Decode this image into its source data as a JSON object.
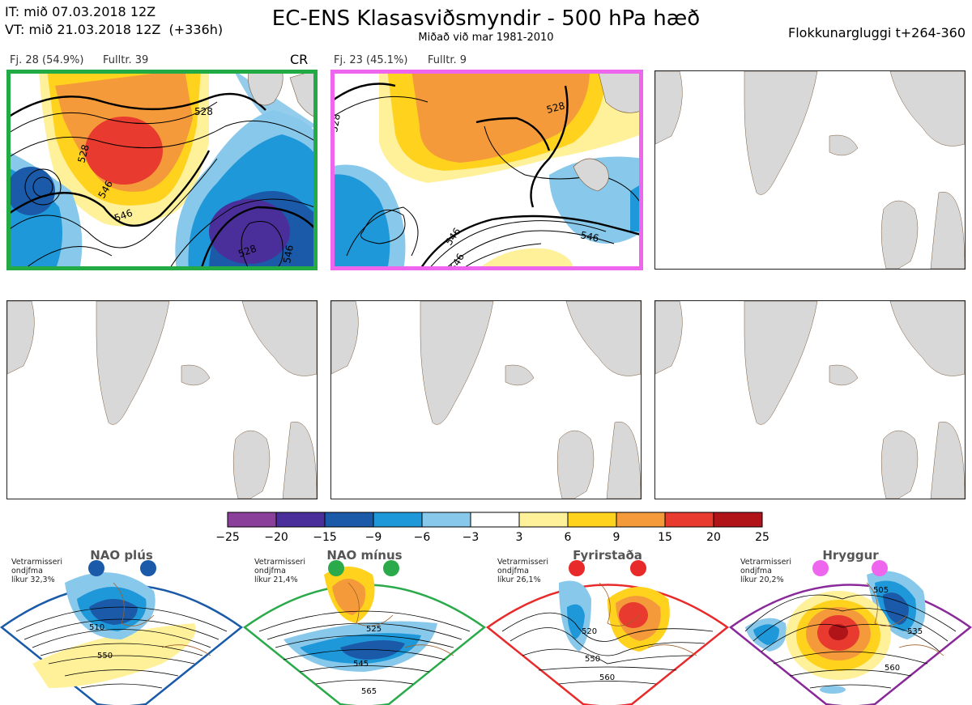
{
  "header": {
    "it_line": "IT: mið 07.03.2018 12Z",
    "vt_line": "VT: mið 21.03.2018 12Z  (+336h)",
    "title": "EC-ENS Klasasviðsmyndir - 500 hPa hæð",
    "subtitle": "Miðað við mar 1981-2010",
    "window": "Flokkunargluggi t+264-360"
  },
  "clusters": [
    {
      "count_label": "Fj. 28 (54.9%)",
      "fulltr_label": "Fulltr. 39",
      "tag": "CR",
      "border": "#22aa44",
      "contours": [
        "528",
        "528",
        "546",
        "546",
        "528",
        "546"
      ]
    },
    {
      "count_label": "Fj. 23 (45.1%)",
      "fulltr_label": "Fulltr. 9",
      "tag": "",
      "border": "#ee66ee",
      "contours": [
        "528",
        "528",
        "546",
        "546",
        "546"
      ]
    }
  ],
  "colorbar": {
    "ticks": [
      "−25",
      "−20",
      "−15",
      "−9",
      "−6",
      "−3",
      "3",
      "6",
      "9",
      "15",
      "20",
      "25"
    ],
    "colors": [
      "#8a3f9a",
      "#4a2f9a",
      "#1a5aa8",
      "#1e98d8",
      "#88c8ea",
      "#ffffff",
      "#fff09a",
      "#ffd21e",
      "#f59a3a",
      "#e83a2e",
      "#b01418"
    ]
  },
  "regimes": [
    {
      "name": "NAO plús",
      "note_l1": "Vetrarmisseri",
      "note_l2": "ondjfma",
      "note_l3": "líkur 32,3%",
      "color": "#1a5aa8",
      "labels": [
        "510",
        "550"
      ]
    },
    {
      "name": "NAO mínus",
      "note_l1": "Vetrarmisseri",
      "note_l2": "ondjfma",
      "note_l3": "líkur 21,4%",
      "color": "#2aaa4a",
      "labels": [
        "525",
        "545",
        "565"
      ]
    },
    {
      "name": "Fyrirstaða",
      "note_l1": "Vetrarmisseri",
      "note_l2": "ondjfma",
      "note_l3": "líkur 26,1%",
      "color": "#e82a2a",
      "labels": [
        "520",
        "550",
        "560"
      ]
    },
    {
      "name": "Hryggur",
      "note_l1": "Vetrarmisseri",
      "note_l2": "ondjfma",
      "note_l3": "líkur 20,2%",
      "color": "#ee66ee",
      "labels": [
        "505",
        "535",
        "560"
      ]
    }
  ]
}
